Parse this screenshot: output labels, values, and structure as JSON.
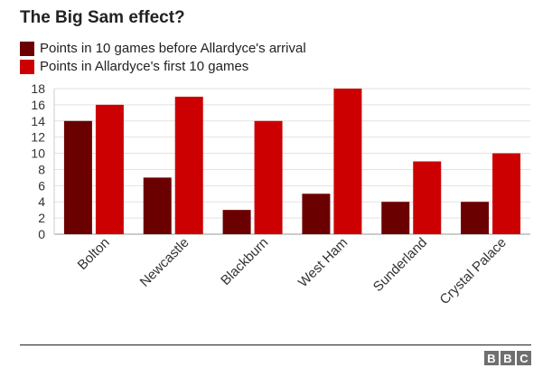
{
  "title": "The Big Sam effect?",
  "legend": [
    {
      "label": "Points in 10 games before Allardyce's arrival",
      "color": "#6b0000"
    },
    {
      "label": "Points in Allardyce's first 10 games",
      "color": "#cc0000"
    }
  ],
  "brand": [
    "B",
    "B",
    "C"
  ],
  "chart_data": {
    "type": "bar",
    "title": "The Big Sam effect?",
    "categories": [
      "Bolton",
      "Newcastle",
      "Blackburn",
      "West Ham",
      "Sunderland",
      "Crystal Palace"
    ],
    "series": [
      {
        "name": "Points in 10 games before Allardyce's arrival",
        "values": [
          14,
          7,
          3,
          5,
          4,
          4
        ],
        "color": "#6b0000"
      },
      {
        "name": "Points in Allardyce's first 10 games",
        "values": [
          16,
          17,
          14,
          18,
          9,
          10
        ],
        "color": "#cc0000"
      }
    ],
    "yticks": [
      0,
      2,
      4,
      6,
      8,
      10,
      12,
      14,
      16,
      18
    ],
    "ylim": [
      0,
      18
    ],
    "grid": true,
    "legend_position": "top-left"
  }
}
